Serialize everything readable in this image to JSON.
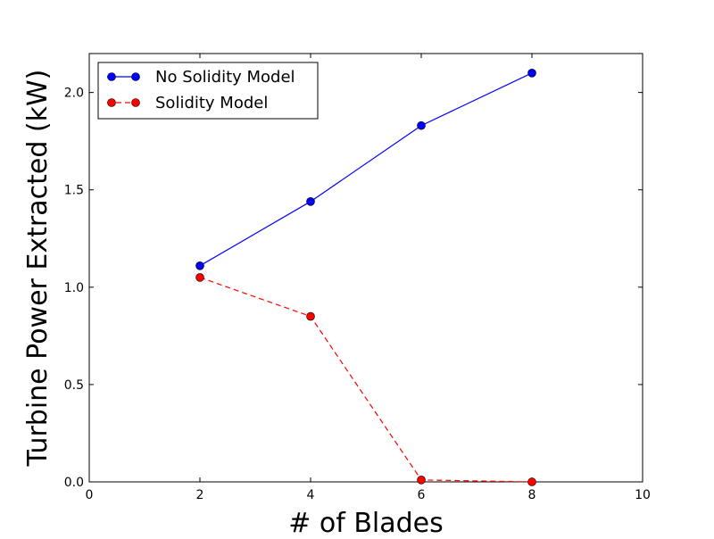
{
  "chart_data": {
    "type": "line",
    "title": "",
    "xlabel": "# of Blades",
    "ylabel": "Turbine Power Extracted (kW)",
    "xlim": [
      0,
      10
    ],
    "ylim": [
      0.0,
      2.2
    ],
    "xticks": [
      0,
      2,
      4,
      6,
      8,
      10
    ],
    "xtick_labels": [
      "0",
      "2",
      "4",
      "6",
      "8",
      "10"
    ],
    "yticks": [
      0.0,
      0.5,
      1.0,
      1.5,
      2.0
    ],
    "ytick_labels": [
      "0.0",
      "0.5",
      "1.0",
      "1.5",
      "2.0"
    ],
    "grid": false,
    "legend_position": "top-left",
    "series": [
      {
        "name": "No Solidity Model",
        "x": [
          2,
          4,
          6,
          8
        ],
        "y": [
          1.11,
          1.44,
          1.83,
          2.1
        ],
        "color": "#0000ff",
        "line_style": "solid",
        "marker": "circle"
      },
      {
        "name": "Solidity Model",
        "x": [
          2,
          4,
          6,
          8
        ],
        "y": [
          1.05,
          0.85,
          0.01,
          0.0
        ],
        "color": "#ff0000",
        "line_style": "dashed",
        "marker": "circle"
      }
    ]
  }
}
